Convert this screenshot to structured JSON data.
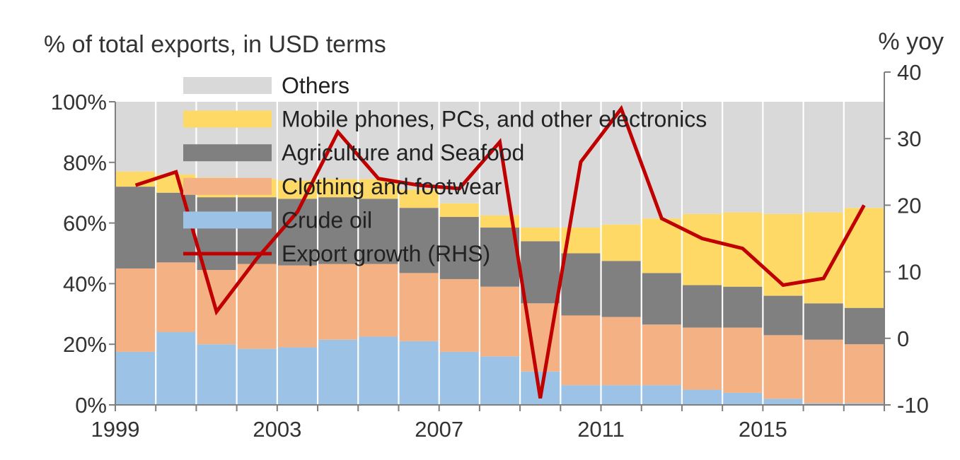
{
  "chart_data": {
    "type": "stacked_bar_with_line",
    "left_axis_title": "% of total exports, in USD terms",
    "right_axis_title": "% yoy",
    "years": [
      1999,
      2000,
      2001,
      2002,
      2003,
      2004,
      2005,
      2006,
      2007,
      2008,
      2009,
      2010,
      2011,
      2012,
      2013,
      2014,
      2015,
      2016,
      2017
    ],
    "x_tick_labels": [
      {
        "year": 1999,
        "label": "1999"
      },
      {
        "year": 2003,
        "label": "2003"
      },
      {
        "year": 2007,
        "label": "2007"
      },
      {
        "year": 2011,
        "label": "2011"
      },
      {
        "year": 2015,
        "label": "2015"
      }
    ],
    "left_ticks": [
      {
        "value": 0,
        "label": "0%"
      },
      {
        "value": 20,
        "label": "20%"
      },
      {
        "value": 40,
        "label": "40%"
      },
      {
        "value": 60,
        "label": "60%"
      },
      {
        "value": 80,
        "label": "80%"
      },
      {
        "value": 100,
        "label": "100%"
      }
    ],
    "right_ticks": [
      {
        "value": -10,
        "label": "-10"
      },
      {
        "value": 0,
        "label": "0"
      },
      {
        "value": 10,
        "label": "10"
      },
      {
        "value": 20,
        "label": "20"
      },
      {
        "value": 30,
        "label": "30"
      },
      {
        "value": 40,
        "label": "40"
      }
    ],
    "left_ylim": [
      0,
      100
    ],
    "right_ylim": [
      -10,
      40
    ],
    "series": [
      {
        "key": "crude",
        "name": "Crude oil",
        "color": "#9cc3e6",
        "values": [
          17.5,
          24,
          20,
          18.5,
          19,
          21.5,
          22.5,
          21,
          17.5,
          16,
          11,
          6.5,
          6.5,
          6.5,
          5,
          4,
          2,
          0.5,
          0.5
        ]
      },
      {
        "key": "clothing",
        "name": "Clothing and footwear",
        "color": "#f4b183",
        "values": [
          27.5,
          23,
          24.5,
          28,
          27,
          25,
          24,
          22.5,
          24,
          23,
          22.5,
          23,
          22.5,
          20,
          20.5,
          21.5,
          21,
          21,
          19.5
        ]
      },
      {
        "key": "agri",
        "name": "Agriculture and Seafood",
        "color": "#808080",
        "values": [
          27,
          23,
          24,
          22,
          22,
          22,
          21.5,
          21.5,
          20.5,
          19.5,
          20.5,
          20.5,
          18.5,
          17,
          14,
          13.5,
          13,
          12,
          12
        ]
      },
      {
        "key": "electronics",
        "name": "Mobile phones, PCs, and other electronics",
        "color": "#ffd966",
        "values": [
          5,
          6,
          6.5,
          6,
          6,
          6,
          6.5,
          6,
          4.5,
          4,
          4.5,
          8.5,
          12,
          18,
          23.5,
          24.5,
          27,
          30,
          33
        ]
      },
      {
        "key": "others",
        "name": "Others",
        "color": "#d9d9d9",
        "values": [
          23,
          24,
          25,
          25.5,
          26,
          25.5,
          25.5,
          29,
          33.5,
          37.5,
          41.5,
          41.5,
          40.5,
          38.5,
          37,
          36.5,
          37,
          36.5,
          35
        ]
      }
    ],
    "line": {
      "name": "Export growth (RHS)",
      "color": "#c00000",
      "values": [
        23,
        25,
        4,
        12,
        19,
        31,
        24,
        23,
        22.5,
        29.5,
        -9,
        26.5,
        34.5,
        18,
        15,
        13.5,
        8,
        9,
        20
      ]
    },
    "legend_order": [
      "others",
      "electronics",
      "agri",
      "clothing",
      "crude",
      "line"
    ],
    "legend_position": "top-left, inside plot",
    "grid": "vertical lines between bars"
  }
}
